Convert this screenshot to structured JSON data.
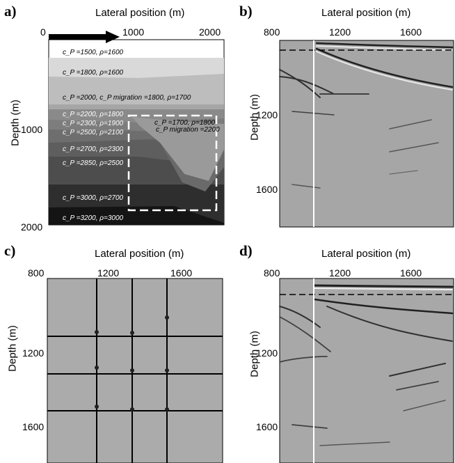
{
  "panel_a": {
    "label": "a)",
    "x_title": "Lateral position (m)",
    "y_title": "Depth (m)",
    "x_ticks": [
      "0",
      "1000",
      "2000"
    ],
    "y_ticks": [
      "1000",
      "2000"
    ],
    "layers": [
      {
        "text": "c_P =1500,  ρ=1600"
      },
      {
        "text": "c_P =1800,  ρ=1600"
      },
      {
        "text": "c_P =2000,  c_P migration =1800,        ρ=1700"
      },
      {
        "text": "c_P =2200,  ρ=1800"
      },
      {
        "text": "c_P =2300,  ρ=1900"
      },
      {
        "text": "c_P =2500,  ρ=2100"
      },
      {
        "text": "c_P =2700,  ρ=2300"
      },
      {
        "text": "c_P =2850,  ρ=2500"
      },
      {
        "text": "c_P =3000,  ρ=2700"
      },
      {
        "text": "c_P =3200,  ρ=3000"
      },
      {
        "text": "c_P =1700,  ρ=1800"
      },
      {
        "text": "c_P migration =2200"
      }
    ]
  },
  "panel_b": {
    "label": "b)",
    "x_title": "Lateral position (m)",
    "y_title": "Depth (m)",
    "x_ticks": [
      "800",
      "1200",
      "1600"
    ],
    "y_ticks": [
      "1200",
      "1600"
    ]
  },
  "panel_c": {
    "label": "c)",
    "x_title": "Lateral position (m)",
    "y_title": "Depth (m)",
    "x_ticks": [
      "800",
      "1200",
      "1600"
    ],
    "y_ticks": [
      "1200",
      "1600"
    ]
  },
  "panel_d": {
    "label": "d)",
    "x_title": "Lateral position (m)",
    "y_title": "Depth (m)",
    "x_ticks": [
      "800",
      "1200",
      "1600"
    ],
    "y_ticks": [
      "1200",
      "1600"
    ]
  }
}
